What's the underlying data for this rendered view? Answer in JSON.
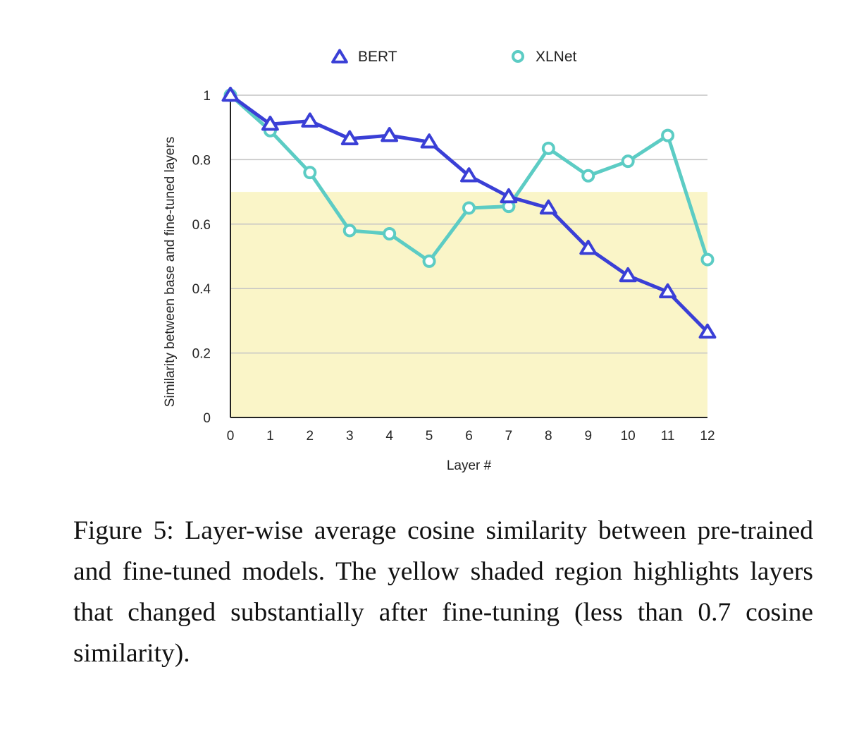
{
  "chart_data": {
    "type": "line",
    "x": [
      0,
      1,
      2,
      3,
      4,
      5,
      6,
      7,
      8,
      9,
      10,
      11,
      12
    ],
    "series": [
      {
        "name": "BERT",
        "marker": "triangle",
        "color": "#3a3fd6",
        "values": [
          1.0,
          0.91,
          0.92,
          0.865,
          0.875,
          0.855,
          0.75,
          0.685,
          0.65,
          0.525,
          0.44,
          0.39,
          0.265
        ]
      },
      {
        "name": "XLNet",
        "marker": "circle",
        "color": "#5cccc4",
        "values": [
          1.0,
          0.89,
          0.76,
          0.58,
          0.57,
          0.485,
          0.65,
          0.655,
          0.835,
          0.75,
          0.795,
          0.875,
          0.49
        ]
      }
    ],
    "xlabel": "Layer #",
    "ylabel": "Similarity between base and fine-tuned layers",
    "ylim": [
      0,
      1
    ],
    "yticks": [
      0,
      0.2,
      0.4,
      0.6,
      0.8,
      1
    ],
    "ytick_labels": [
      "0",
      "0.2",
      "0.4",
      "0.6",
      "0.8",
      "1"
    ],
    "xtick_labels": [
      "0",
      "1",
      "2",
      "3",
      "4",
      "5",
      "6",
      "7",
      "8",
      "9",
      "10",
      "11",
      "12"
    ],
    "shaded_region": {
      "from": 0,
      "to": 0.7,
      "color": "#faf5c8"
    },
    "grid": true,
    "legend_position": "top"
  },
  "caption": "Figure 5: Layer-wise average cosine similarity between pre-trained and fine-tuned models. The yellow shaded region highlights layers that changed substantially after fine-tuning (less than 0.7 cosine similarity)."
}
